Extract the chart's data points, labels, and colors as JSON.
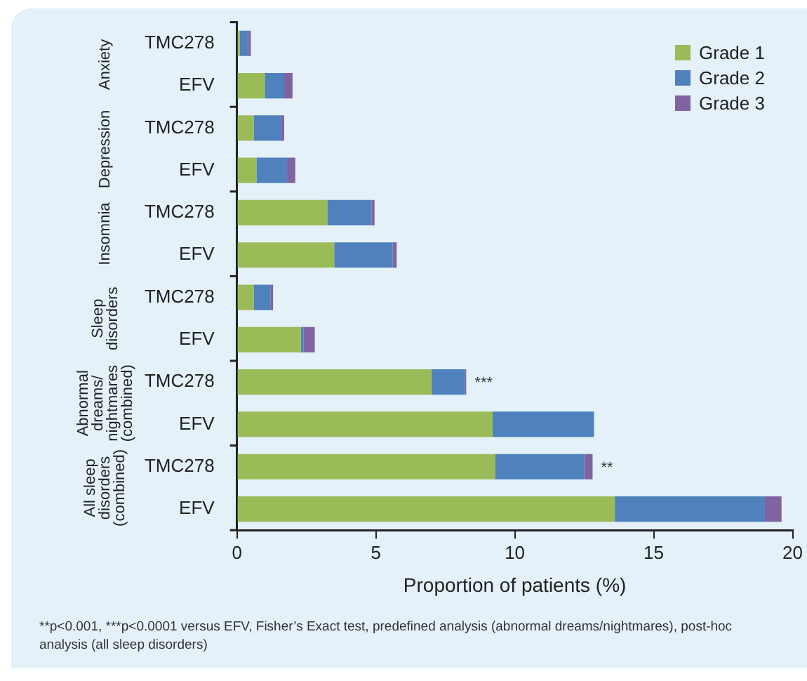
{
  "chart_data": {
    "type": "bar",
    "orientation": "horizontal",
    "stacked": true,
    "xlabel": "Proportion of patients (%)",
    "categories": [
      "TMC278",
      "EFV",
      "TMC278",
      "EFV",
      "TMC278",
      "EFV",
      "TMC278",
      "EFV",
      "TMC278",
      "EFV",
      "TMC278",
      "EFV"
    ],
    "series": [
      {
        "name": "Grade 1",
        "color": "#9bbb59",
        "values": [
          0.1,
          1.0,
          0.6,
          0.7,
          3.25,
          3.5,
          0.6,
          2.3,
          7.0,
          9.2,
          9.3,
          13.6
        ]
      },
      {
        "name": "Grade 2",
        "color": "#4f81bd",
        "values": [
          0.3,
          0.7,
          1.0,
          1.1,
          1.6,
          2.1,
          0.6,
          0.1,
          1.2,
          3.65,
          3.2,
          5.4
        ]
      },
      {
        "name": "Grade 3",
        "color": "#8064a2",
        "values": [
          0.1,
          0.3,
          0.1,
          0.3,
          0.1,
          0.15,
          0.1,
          0.4,
          0.05,
          null,
          0.3,
          0.6
        ]
      }
    ],
    "xlim": [
      0,
      20
    ],
    "xticks": [
      0,
      5,
      10,
      15,
      20
    ],
    "grid": false,
    "legend": "top right",
    "annotations": [
      "Anxiety",
      "Depression",
      "Insomnia",
      "Sleep\ndisorders",
      "Abnormal\ndreams/\nnightmares\n(combined)",
      "All sleep\ndisorders\n(combined)",
      "***",
      "**",
      "**p<0.001, ***p<0.0001 versus EFV, Fisher’s Exact test, predefined analysis (abnormal dreams/nightmares), post-hoc analysis (all sleep disorders)"
    ]
  }
}
